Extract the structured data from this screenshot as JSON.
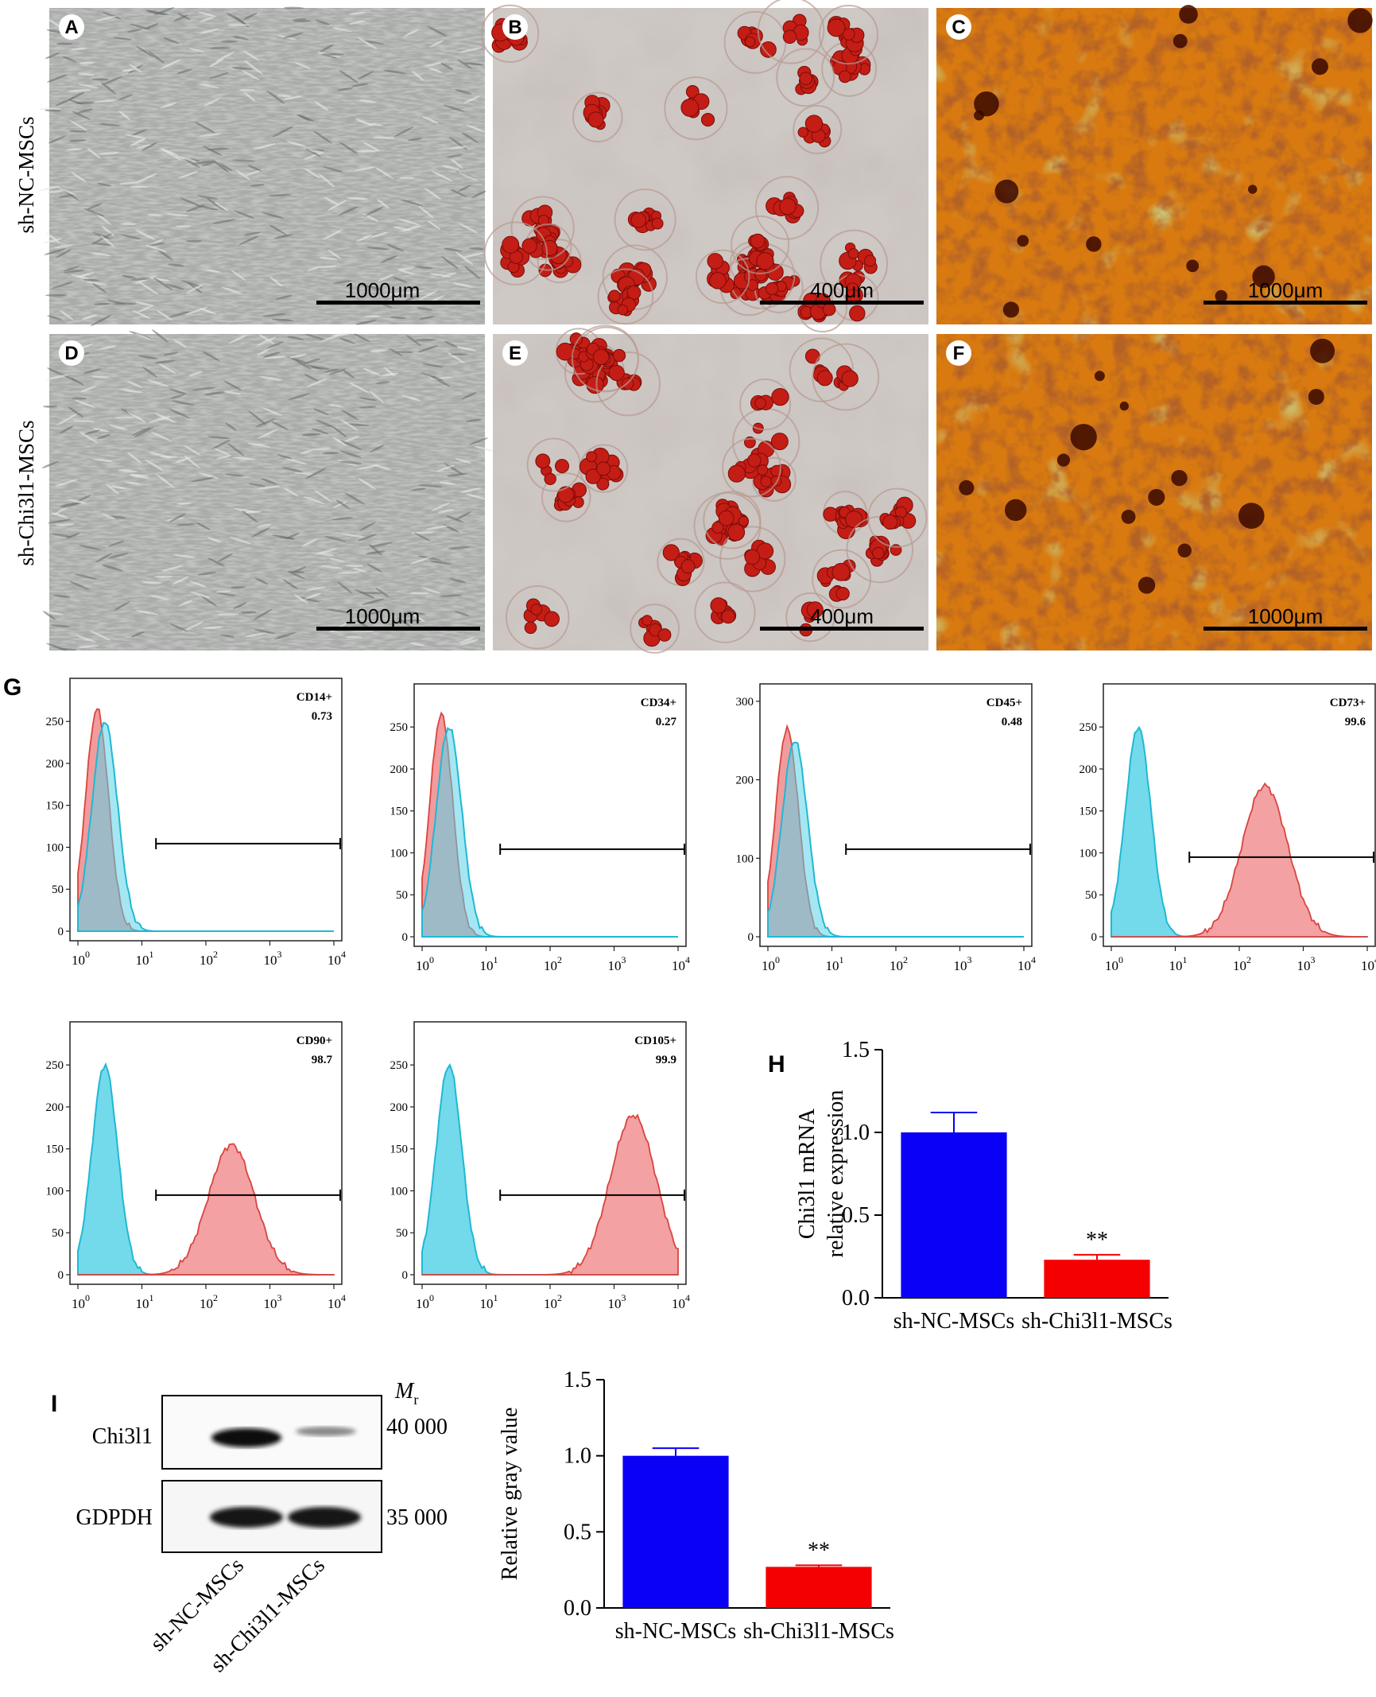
{
  "figure": {
    "row_labels": [
      "sh-NC-MSCs",
      "sh-Chi3l1-MSCs"
    ],
    "micro_panels": [
      {
        "letter": "A",
        "scale": "1000μm",
        "kind": "phase"
      },
      {
        "letter": "B",
        "scale": "400μm",
        "kind": "oil"
      },
      {
        "letter": "C",
        "scale": "1000μm",
        "kind": "alizarin"
      },
      {
        "letter": "D",
        "scale": "1000μm",
        "kind": "phase"
      },
      {
        "letter": "E",
        "scale": "400μm",
        "kind": "oil"
      },
      {
        "letter": "F",
        "scale": "1000μm",
        "kind": "alizarin"
      }
    ],
    "flow_letter": "G",
    "flow_panels": [
      {
        "name": "CD14+",
        "value": "0.73",
        "yticks": [
          "0",
          "50",
          "100",
          "150",
          "200",
          "250"
        ],
        "ymax": 290,
        "positive": false
      },
      {
        "name": "CD34+",
        "value": "0.27",
        "yticks": [
          "0",
          "50",
          "100",
          "150",
          "200",
          "250"
        ],
        "ymax": 290,
        "positive": false
      },
      {
        "name": "CD45+",
        "value": "0.48",
        "yticks": [
          "0",
          "100",
          "200",
          "300"
        ],
        "ymax": 310,
        "positive": false
      },
      {
        "name": "CD73+",
        "value": "99.6",
        "yticks": [
          "0",
          "50",
          "100",
          "150",
          "200",
          "250"
        ],
        "ymax": 290,
        "positive": true,
        "pos_center": 2.4,
        "pos_peak": 180
      },
      {
        "name": "CD90+",
        "value": "98.7",
        "yticks": [
          "0",
          "50",
          "100",
          "150",
          "200",
          "250"
        ],
        "ymax": 290,
        "positive": true,
        "pos_center": 2.4,
        "pos_peak": 155
      },
      {
        "name": "CD105+",
        "value": "99.9",
        "yticks": [
          "0",
          "50",
          "100",
          "150",
          "200",
          "250"
        ],
        "ymax": 290,
        "positive": true,
        "pos_center": 3.3,
        "pos_peak": 190
      }
    ],
    "flow_xtick_labels": [
      "10",
      "10",
      "10",
      "10",
      "10"
    ],
    "flow_xtick_exps": [
      "0",
      "1",
      "2",
      "3",
      "4"
    ],
    "colors": {
      "control": "#5ad3e8",
      "stained": "#f08a8c",
      "bar_nc": "#0a00f5",
      "bar_sh": "#f40000"
    },
    "western": {
      "letter": "I",
      "mr_label": "M",
      "mr_sub": "r",
      "bands": [
        {
          "label": "Chi3l1",
          "mw": "40 000"
        },
        {
          "label": "GDPDH",
          "mw": "35 000"
        }
      ],
      "lanes": [
        "sh-NC-MSCs",
        "sh-Chi3l1-MSCs"
      ]
    }
  },
  "chart_data": [
    {
      "type": "bar",
      "panel": "H",
      "categories": [
        "sh-NC-MSCs",
        "sh-Chi3l1-MSCs"
      ],
      "values": [
        1.0,
        0.23
      ],
      "errors": [
        0.12,
        0.03
      ],
      "annotations": [
        "",
        "**"
      ],
      "ylabel_lines": [
        "Chi3l1 mRNA",
        "relative expression"
      ],
      "ylim": [
        0,
        1.5
      ],
      "yticks": [
        "0.0",
        "0.5",
        "1.0",
        "1.5"
      ]
    },
    {
      "type": "bar",
      "panel": "I",
      "categories": [
        "sh-NC-MSCs",
        "sh-Chi3l1-MSCs"
      ],
      "values": [
        1.0,
        0.27
      ],
      "errors": [
        0.05,
        0.01
      ],
      "annotations": [
        "",
        "**"
      ],
      "ylabel_lines": [
        "Relative gray value"
      ],
      "ylim": [
        0,
        1.5
      ],
      "yticks": [
        "0.0",
        "0.5",
        "1.0",
        "1.5"
      ]
    }
  ]
}
